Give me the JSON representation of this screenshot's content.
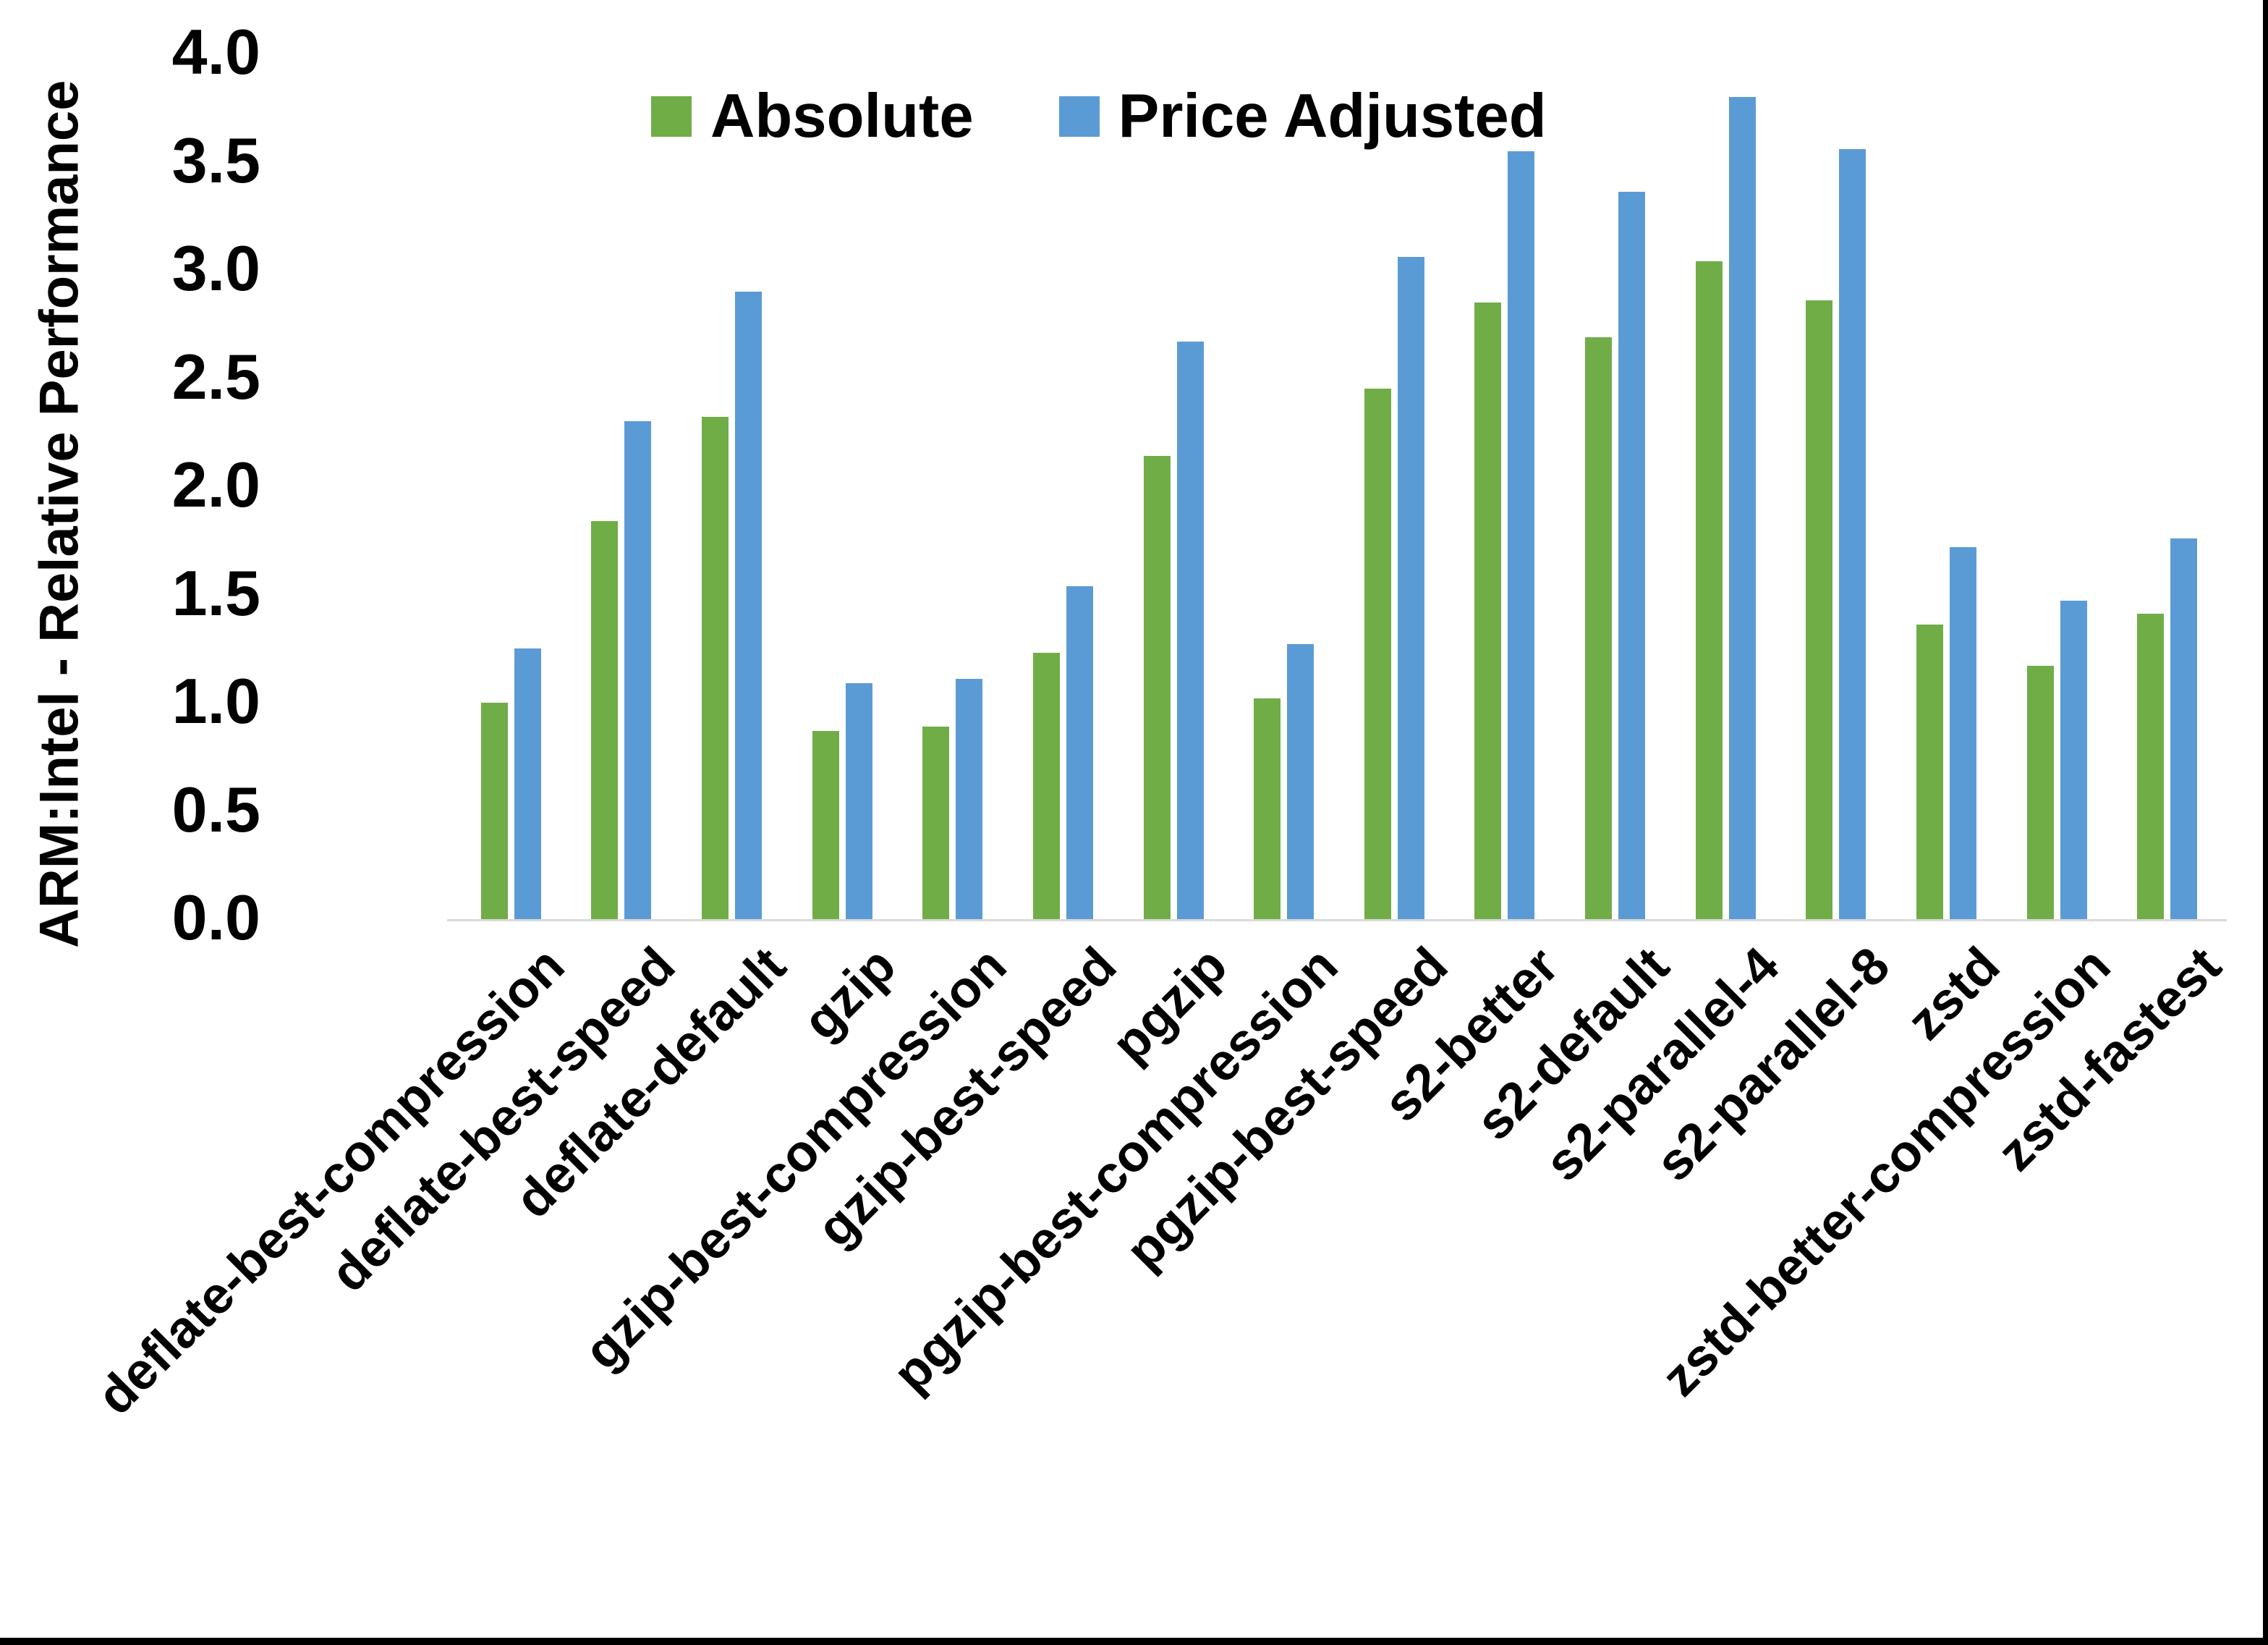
{
  "chart_data": {
    "type": "bar",
    "title": "",
    "xlabel": "",
    "ylabel": "ARM:Intel - Relative Performance",
    "ylim": [
      0.0,
      4.0
    ],
    "ytick_step": 0.5,
    "y_tick_labels": [
      "0.0",
      "0.5",
      "1.0",
      "1.5",
      "2.0",
      "2.5",
      "3.0",
      "3.5",
      "4.0"
    ],
    "grid": false,
    "legend_position": "top-center",
    "axis_line_color": "#D9D9D9",
    "categories": [
      "deflate-best-compression",
      "deflate-best-speed",
      "deflate-default",
      "gzip",
      "gzip-best-compression",
      "gzip-best-speed",
      "pgzip",
      "pgzip-best-compression",
      "pgzip-best-speed",
      "s2-better",
      "s2-default",
      "s2-parallel-4",
      "s2-parallel-8",
      "zstd",
      "zstd-better-compression",
      "zstd-fastest"
    ],
    "series": [
      {
        "name": "Absolute",
        "color": "#70AD47",
        "values": [
          1.0,
          1.84,
          2.32,
          0.87,
          0.89,
          1.23,
          2.14,
          1.02,
          2.45,
          2.85,
          2.69,
          3.04,
          2.86,
          1.36,
          1.17,
          1.41
        ]
      },
      {
        "name": "Price Adjusted",
        "color": "#5B9BD5",
        "values": [
          1.25,
          2.3,
          2.9,
          1.09,
          1.11,
          1.54,
          2.67,
          1.27,
          3.06,
          3.55,
          3.36,
          3.8,
          3.56,
          1.72,
          1.47,
          1.76
        ]
      }
    ]
  }
}
